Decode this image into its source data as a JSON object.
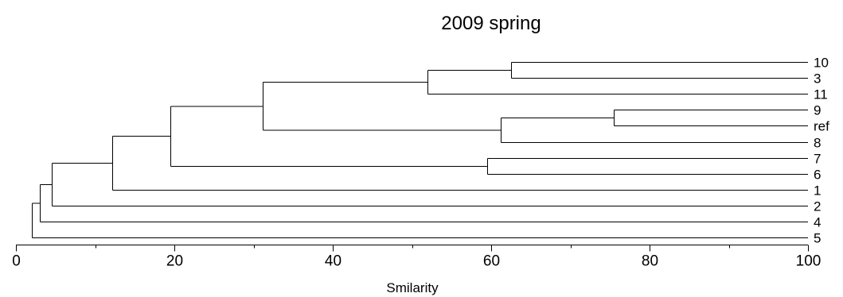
{
  "chart_data": {
    "type": "dendrogram",
    "title": "2009 spring",
    "xlabel": "Smilarity",
    "xlim": [
      0,
      100
    ],
    "xticks": [
      0,
      20,
      40,
      60,
      80,
      100
    ],
    "leaves": [
      "10",
      "3",
      "11",
      "9",
      "ref",
      "8",
      "7",
      "6",
      "1",
      "2",
      "4",
      "5"
    ],
    "merges": [
      {
        "id": "c1",
        "children": [
          "10",
          "3"
        ],
        "similarity": 62.5
      },
      {
        "id": "c2",
        "children": [
          "c1",
          "11"
        ],
        "similarity": 52.0
      },
      {
        "id": "c3",
        "children": [
          "9",
          "ref"
        ],
        "similarity": 75.5
      },
      {
        "id": "c4",
        "children": [
          "c3",
          "8"
        ],
        "similarity": 61.2
      },
      {
        "id": "c5",
        "children": [
          "c2",
          "c4"
        ],
        "similarity": 31.2
      },
      {
        "id": "c6",
        "children": [
          "7",
          "6"
        ],
        "similarity": 59.5
      },
      {
        "id": "c7",
        "children": [
          "c5",
          "c6"
        ],
        "similarity": 19.5
      },
      {
        "id": "c8",
        "children": [
          "c7",
          "1"
        ],
        "similarity": 12.2
      },
      {
        "id": "c9",
        "children": [
          "c8",
          "2"
        ],
        "similarity": 4.5
      },
      {
        "id": "c10",
        "children": [
          "c9",
          "4"
        ],
        "similarity": 3.0
      },
      {
        "id": "c11",
        "children": [
          "c10",
          "5"
        ],
        "similarity": 2.0
      }
    ]
  }
}
